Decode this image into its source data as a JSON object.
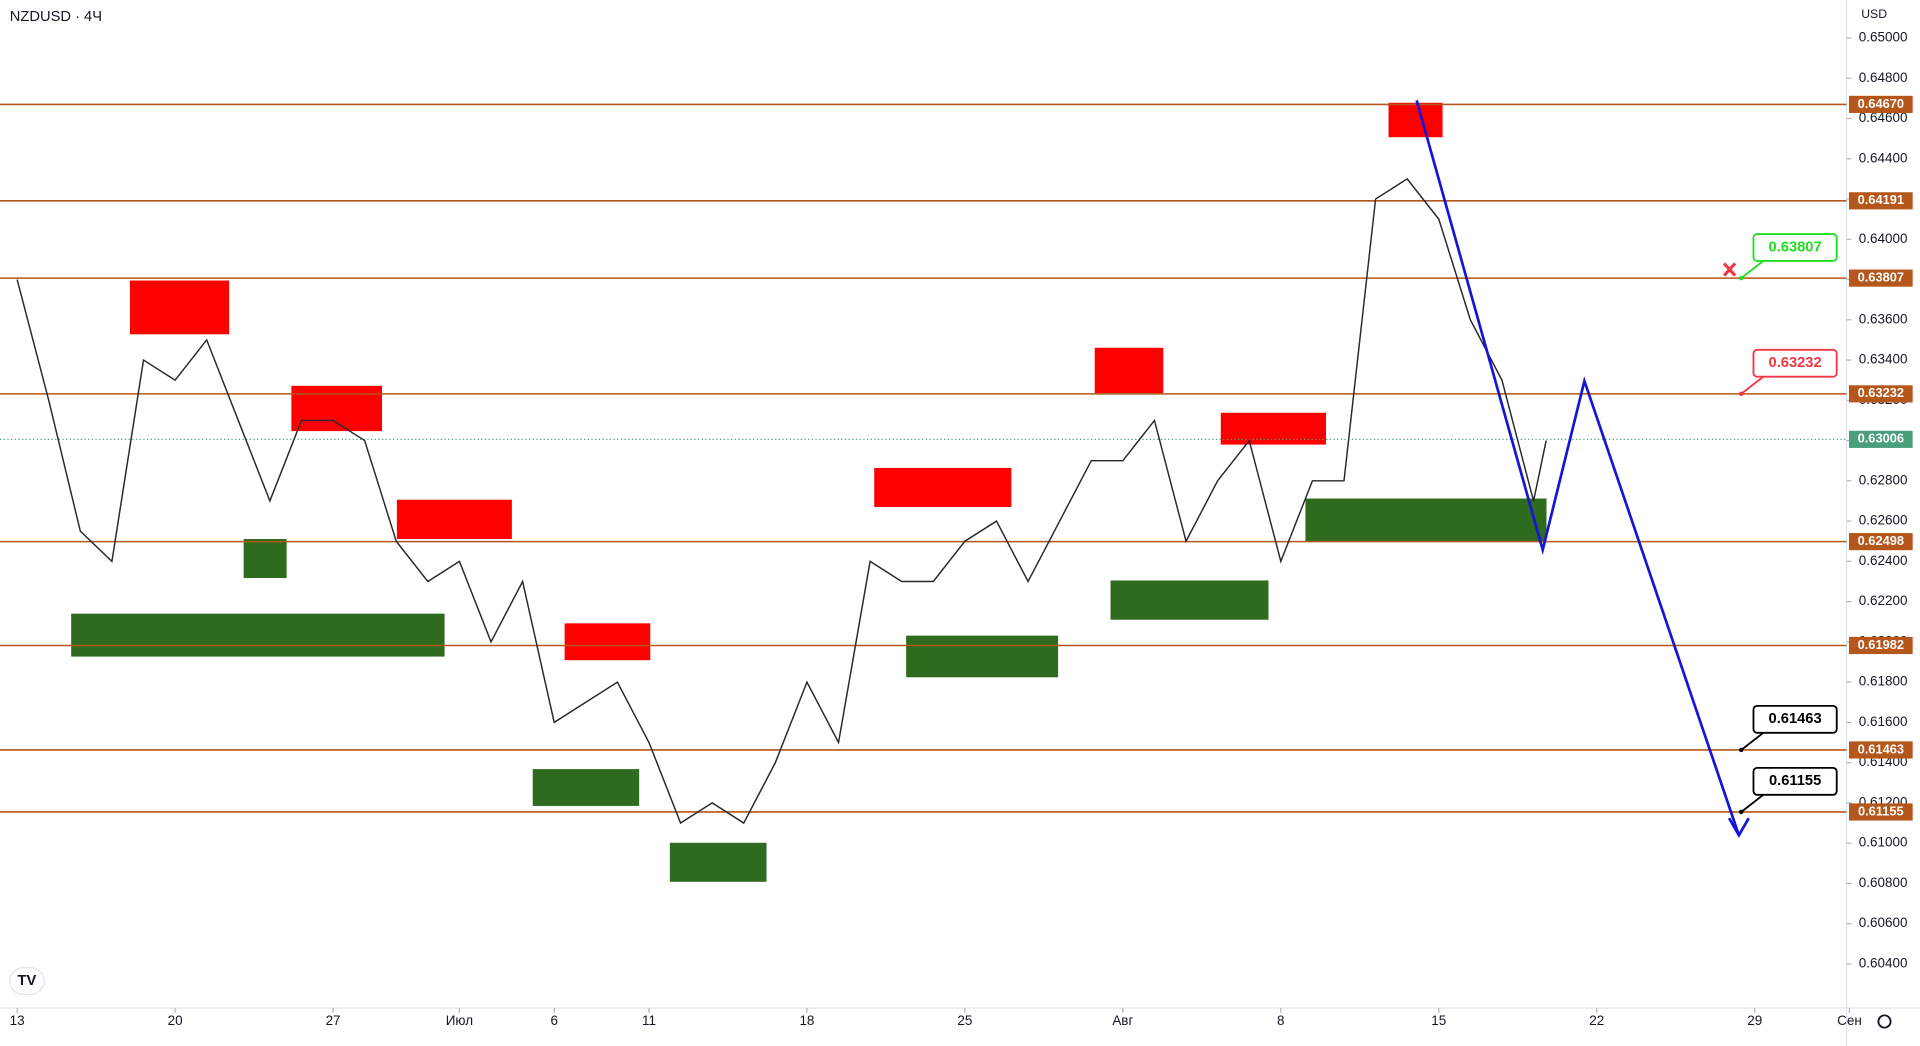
{
  "chart_data": {
    "type": "line",
    "title": "NZDUSD · 4Ч",
    "currency": "USD",
    "xlim": [
      -0.5426,
      57.907
    ],
    "ylim": [
      0.60181,
      0.651886
    ],
    "xticks": [
      {
        "value": 0,
        "label": "13"
      },
      {
        "value": 5,
        "label": "20"
      },
      {
        "value": 10,
        "label": "27"
      },
      {
        "value": 14,
        "label": "Июл"
      },
      {
        "value": 17,
        "label": "6"
      },
      {
        "value": 20,
        "label": "11"
      },
      {
        "value": 25,
        "label": "18"
      },
      {
        "value": 30,
        "label": "25"
      },
      {
        "value": 35,
        "label": "Авг"
      },
      {
        "value": 40,
        "label": "8"
      },
      {
        "value": 45,
        "label": "15"
      },
      {
        "value": 50,
        "label": "22"
      },
      {
        "value": 55,
        "label": "29"
      },
      {
        "value": 58,
        "label": "Сен"
      }
    ],
    "yticks": [
      {
        "value": 0.65,
        "label": "0.65000"
      },
      {
        "value": 0.648,
        "label": "0.64800"
      },
      {
        "value": 0.646,
        "label": "0.64600"
      },
      {
        "value": 0.644,
        "label": "0.64400"
      },
      {
        "value": 0.642,
        "label": "0.64200"
      },
      {
        "value": 0.64,
        "label": "0.64000"
      },
      {
        "value": 0.638,
        "label": "0.63800"
      },
      {
        "value": 0.636,
        "label": "0.63600"
      },
      {
        "value": 0.634,
        "label": "0.63400"
      },
      {
        "value": 0.632,
        "label": "0.63200"
      },
      {
        "value": 0.63,
        "label": "0.63000"
      },
      {
        "value": 0.628,
        "label": "0.62800"
      },
      {
        "value": 0.626,
        "label": "0.62600"
      },
      {
        "value": 0.624,
        "label": "0.62400"
      },
      {
        "value": 0.622,
        "label": "0.62200"
      },
      {
        "value": 0.62,
        "label": "0.62000"
      },
      {
        "value": 0.618,
        "label": "0.61800"
      },
      {
        "value": 0.616,
        "label": "0.61600"
      },
      {
        "value": 0.614,
        "label": "0.61400"
      },
      {
        "value": 0.612,
        "label": "0.61200"
      },
      {
        "value": 0.61,
        "label": "0.61000"
      },
      {
        "value": 0.608,
        "label": "0.60800"
      },
      {
        "value": 0.606,
        "label": "0.60600"
      },
      {
        "value": 0.604,
        "label": "0.60400"
      }
    ],
    "x": [
      0,
      1,
      2,
      3,
      4,
      5,
      6,
      7,
      8,
      9,
      10,
      11,
      12,
      13,
      14,
      15,
      16,
      17,
      18,
      19,
      20,
      21,
      22,
      23,
      24,
      25,
      26,
      27,
      28,
      29,
      30,
      31,
      32,
      33,
      34,
      35,
      36,
      37,
      38,
      39,
      40,
      41,
      42,
      43,
      44,
      45,
      46,
      47,
      48,
      48.4
    ],
    "series": [
      {
        "color": "#26292e",
        "values": [
          0.638,
          0.632,
          0.6255,
          0.624,
          0.634,
          0.633,
          0.635,
          0.631,
          0.627,
          0.631,
          0.631,
          0.63,
          0.625,
          0.623,
          0.624,
          0.62,
          0.623,
          0.616,
          0.617,
          0.618,
          0.615,
          0.611,
          0.612,
          0.611,
          0.614,
          0.618,
          0.615,
          0.624,
          0.623,
          0.623,
          0.625,
          0.626,
          0.623,
          0.626,
          0.629,
          0.629,
          0.631,
          0.625,
          0.628,
          0.63,
          0.624,
          0.628,
          0.628,
          0.642,
          0.643,
          0.641,
          0.636,
          0.633,
          0.627,
          0.63
        ]
      }
    ],
    "level_color": "#b5561a",
    "levels": [
      {
        "value": 0.6467,
        "label": "0.64670"
      },
      {
        "value": 0.64191,
        "label": "0.64191"
      },
      {
        "value": 0.63807,
        "label": "0.63807"
      },
      {
        "value": 0.63232,
        "label": "0.63232"
      },
      {
        "value": 0.62498,
        "label": "0.62498"
      },
      {
        "value": 0.61982,
        "label": "0.61982"
      },
      {
        "value": 0.61463,
        "label": "0.61463"
      },
      {
        "value": 0.61155,
        "label": "0.61155"
      }
    ],
    "current_price": {
      "value": 0.63006,
      "label": "0.63006",
      "color": "#4a9e7b"
    },
    "zones": [
      {
        "x0": 3.57,
        "x1": 6.71,
        "y0": 0.63528,
        "y1": 0.63795,
        "color": "#ff0000"
      },
      {
        "x0": 8.68,
        "x1": 11.55,
        "y0": 0.63047,
        "y1": 0.63272,
        "color": "#ff0000"
      },
      {
        "x0": 12.02,
        "x1": 15.66,
        "y0": 0.62511,
        "y1": 0.62706,
        "color": "#ff0000"
      },
      {
        "x0": 17.33,
        "x1": 20.04,
        "y0": 0.61909,
        "y1": 0.62092,
        "color": "#ff0000"
      },
      {
        "x0": 27.13,
        "x1": 31.47,
        "y0": 0.6267,
        "y1": 0.62864,
        "color": "#ff0000"
      },
      {
        "x0": 34.11,
        "x1": 36.28,
        "y0": 0.63235,
        "y1": 0.63461,
        "color": "#ff0000"
      },
      {
        "x0": 38.1,
        "x1": 41.43,
        "y0": 0.6298,
        "y1": 0.63138,
        "color": "#ff0000"
      },
      {
        "x0": 43.41,
        "x1": 45.12,
        "y0": 0.64507,
        "y1": 0.64678,
        "color": "#ff0000"
      },
      {
        "x0": 1.71,
        "x1": 13.53,
        "y0": 0.61927,
        "y1": 0.6214,
        "color": "#2e6b1f"
      },
      {
        "x0": 7.17,
        "x1": 8.53,
        "y0": 0.62317,
        "y1": 0.62511,
        "color": "#2e6b1f"
      },
      {
        "x0": 16.32,
        "x1": 19.69,
        "y0": 0.61185,
        "y1": 0.61368,
        "color": "#2e6b1f"
      },
      {
        "x0": 20.66,
        "x1": 23.72,
        "y0": 0.60808,
        "y1": 0.61002,
        "color": "#2e6b1f"
      },
      {
        "x0": 28.14,
        "x1": 32.95,
        "y0": 0.61824,
        "y1": 0.62031,
        "color": "#2e6b1f"
      },
      {
        "x0": 34.61,
        "x1": 39.61,
        "y0": 0.6211,
        "y1": 0.62305,
        "color": "#2e6b1f"
      },
      {
        "x0": 40.78,
        "x1": 48.41,
        "y0": 0.62499,
        "y1": 0.62712,
        "color": "#2e6b1f"
      }
    ],
    "projection": {
      "color": "#1515d8",
      "x": [
        44.3,
        48.29,
        49.61,
        54.5
      ],
      "values": [
        0.6469,
        0.62457,
        0.63296,
        0.61039
      ]
    },
    "callouts": [
      {
        "value": 0.63807,
        "label": "0.63807",
        "color": "#22dd22"
      },
      {
        "value": 0.63232,
        "label": "0.63232",
        "color": "#f23645"
      },
      {
        "value": 0.61463,
        "label": "0.61463",
        "color": "#000000"
      },
      {
        "value": 0.61155,
        "label": "0.61155",
        "color": "#000000"
      }
    ]
  }
}
